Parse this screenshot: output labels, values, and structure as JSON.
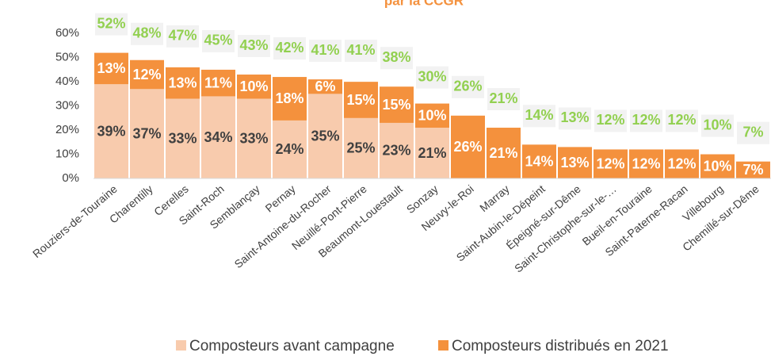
{
  "chart_data": {
    "type": "stacked_bar",
    "title": "par la CCGR",
    "categories": [
      "Rouziers-de-Touraine",
      "Charentilly",
      "Cerelles",
      "Saint-Roch",
      "Semblançay",
      "Pernay",
      "Saint-Antoine-du-Rocher",
      "Neuillé-Pont-Pierre",
      "Beaumont-Louestault",
      "Sonzay",
      "Neuvy-le-Roi",
      "Marray",
      "Saint-Aubin-le-Dépeint",
      "Épeigné-sur-Dême",
      "Saint-Christophe-sur-le-…",
      "Bueil-en-Touraine",
      "Saint-Paterne-Racan",
      "Villebourg",
      "Chemillé-sur-Dême"
    ],
    "series": [
      {
        "name": "Composteurs avant campagne",
        "color": "#f8cbad",
        "values": [
          39,
          37,
          33,
          34,
          33,
          24,
          35,
          25,
          23,
          21,
          null,
          null,
          null,
          null,
          null,
          null,
          null,
          null,
          null
        ],
        "value_labels": [
          "39%",
          "37%",
          "33%",
          "34%",
          "33%",
          "24%",
          "35%",
          "25%",
          "23%",
          "21%",
          null,
          null,
          null,
          null,
          null,
          null,
          null,
          null,
          null
        ]
      },
      {
        "name": "Composteurs distribués en 2021",
        "color": "#f4913d",
        "values": [
          13,
          12,
          13,
          11,
          10,
          18,
          6,
          15,
          15,
          10,
          26,
          21,
          14,
          13,
          12,
          12,
          12,
          10,
          7
        ],
        "value_labels": [
          "13%",
          "12%",
          "13%",
          "11%",
          "10%",
          "18%",
          "6%",
          "15%",
          "15%",
          "10%",
          "26%",
          "21%",
          "14%",
          "13%",
          "12%",
          "12%",
          "12%",
          "10%",
          "7%"
        ]
      }
    ],
    "totals": {
      "color": "#92d050",
      "values": [
        52,
        48,
        47,
        45,
        43,
        42,
        41,
        41,
        38,
        30,
        26,
        21,
        14,
        13,
        12,
        12,
        12,
        10,
        7
      ],
      "value_labels": [
        "52%",
        "48%",
        "47%",
        "45%",
        "43%",
        "42%",
        "41%",
        "41%",
        "38%",
        "30%",
        "26%",
        "21%",
        "14%",
        "13%",
        "12%",
        "12%",
        "12%",
        "10%",
        "7%"
      ]
    },
    "ylim": [
      0,
      65
    ],
    "yticks": [
      {
        "value": 0,
        "label": "0%"
      },
      {
        "value": 10,
        "label": "10%"
      },
      {
        "value": 20,
        "label": "20%"
      },
      {
        "value": 30,
        "label": "30%"
      },
      {
        "value": 40,
        "label": "40%"
      },
      {
        "value": 50,
        "label": "50%"
      },
      {
        "value": 60,
        "label": "60%"
      }
    ],
    "legend": "bottom"
  }
}
